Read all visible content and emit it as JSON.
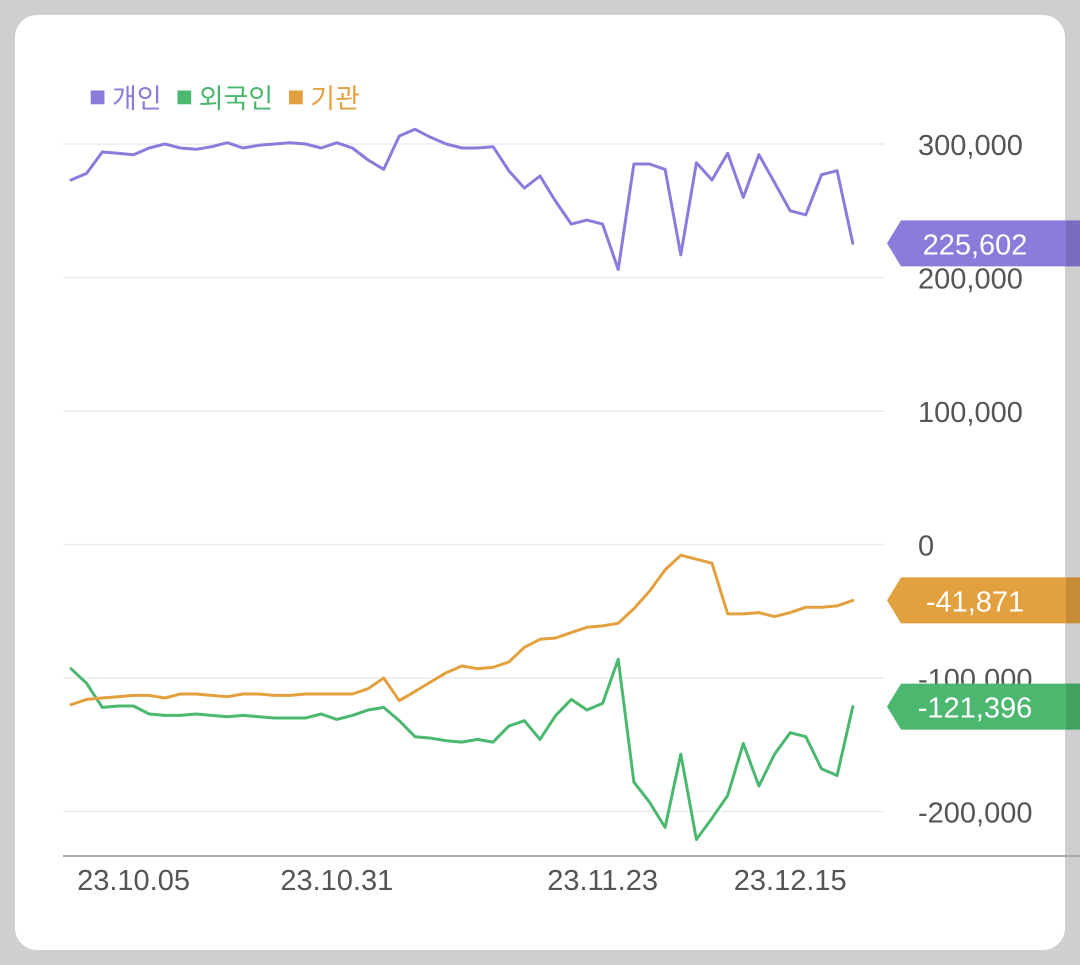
{
  "legend": [
    {
      "label": "개인",
      "color": "#8b7cdc"
    },
    {
      "label": "외국인",
      "color": "#4cb86f"
    },
    {
      "label": "기관",
      "color": "#e3a03e"
    }
  ],
  "chart_data": {
    "type": "line",
    "title": "",
    "xlabel": "",
    "ylabel": "",
    "ylim": [
      -233000,
      310000
    ],
    "y_ticks": [
      {
        "value": 300000,
        "label": "300,000"
      },
      {
        "value": 200000,
        "label": "200,000"
      },
      {
        "value": 100000,
        "label": "100,000"
      },
      {
        "value": 0,
        "label": "0"
      },
      {
        "value": -100000,
        "label": "-100,000"
      },
      {
        "value": -200000,
        "label": "-200,000"
      }
    ],
    "x_ticks": [
      {
        "index": 4,
        "label": "23.10.05"
      },
      {
        "index": 17,
        "label": "23.10.31"
      },
      {
        "index": 34,
        "label": "23.11.23"
      },
      {
        "index": 46,
        "label": "23.12.15"
      }
    ],
    "grid": true,
    "series": [
      {
        "name": "개인",
        "color": "#8b7cdc",
        "last_label": "225,602",
        "values": [
          273000,
          278000,
          294000,
          293000,
          292000,
          297000,
          300000,
          297000,
          296000,
          298000,
          301000,
          297000,
          299000,
          300000,
          301000,
          300000,
          297000,
          301000,
          297000,
          288000,
          281000,
          306000,
          311000,
          305000,
          300000,
          297000,
          297000,
          298000,
          280000,
          267000,
          276000,
          257000,
          240000,
          243000,
          240000,
          206000,
          285000,
          285000,
          281000,
          217000,
          286000,
          273000,
          293000,
          260000,
          292000,
          271000,
          250000,
          247000,
          277000,
          280000,
          225602
        ]
      },
      {
        "name": "외국인",
        "color": "#4cb86f",
        "last_label": "-121,396",
        "values": [
          -93000,
          -104000,
          -122000,
          -121000,
          -121000,
          -127000,
          -128000,
          -128000,
          -127000,
          -128000,
          -129000,
          -128000,
          -129000,
          -130000,
          -130000,
          -130000,
          -127000,
          -131000,
          -128000,
          -124000,
          -122000,
          -132000,
          -144000,
          -145000,
          -147000,
          -148000,
          -146000,
          -148000,
          -136000,
          -132000,
          -146000,
          -128000,
          -116000,
          -124000,
          -119000,
          -86000,
          -178000,
          -193000,
          -212000,
          -157000,
          -221000,
          -205000,
          -188000,
          -149000,
          -181000,
          -157000,
          -141000,
          -144000,
          -168000,
          -173000,
          -121396
        ]
      },
      {
        "name": "기관",
        "color": "#e3a03e",
        "last_label": "-41,871",
        "values": [
          -120000,
          -116000,
          -115000,
          -114000,
          -113000,
          -113000,
          -115000,
          -112000,
          -112000,
          -113000,
          -114000,
          -112000,
          -112000,
          -113000,
          -113000,
          -112000,
          -112000,
          -112000,
          -112000,
          -108000,
          -100000,
          -117000,
          -110000,
          -103000,
          -96000,
          -91000,
          -93000,
          -92000,
          -88000,
          -77000,
          -71000,
          -70000,
          -66000,
          -62000,
          -61000,
          -59000,
          -48000,
          -35000,
          -19000,
          -8000,
          -11000,
          -14000,
          -52000,
          -52000,
          -51000,
          -54000,
          -51000,
          -47000,
          -47000,
          -46000,
          -41871
        ]
      }
    ]
  }
}
